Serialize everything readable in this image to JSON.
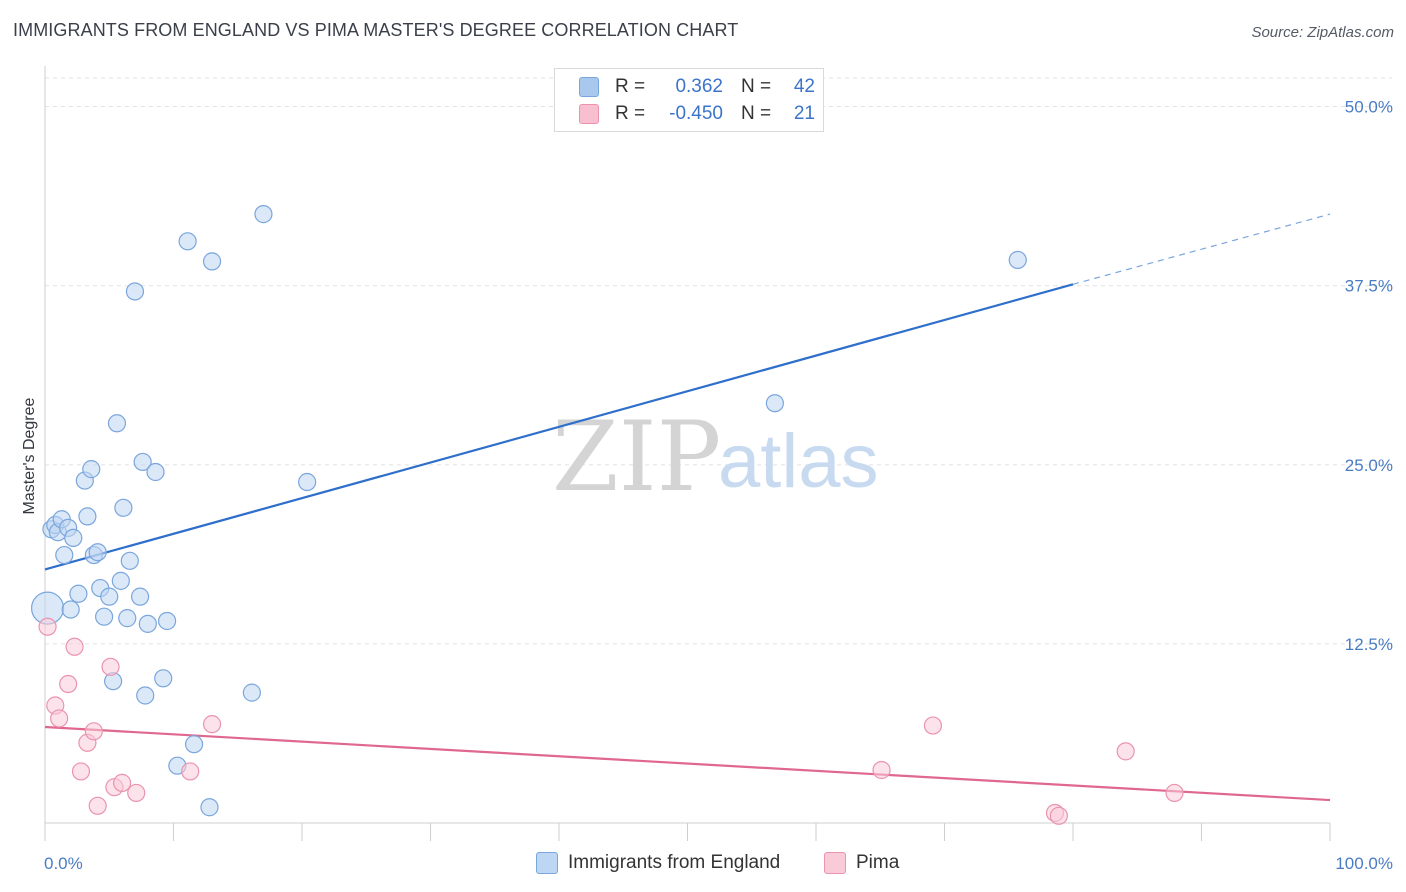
{
  "title": "IMMIGRANTS FROM ENGLAND VS PIMA MASTER'S DEGREE CORRELATION CHART",
  "source": "Source: ZipAtlas.com",
  "watermark": {
    "zip": "ZIP",
    "atlas": "atlas"
  },
  "legend_top": [
    {
      "r_label": "R =",
      "r_value": "0.362",
      "n_label": "N =",
      "n_value": "42",
      "color": "#a9c8ee",
      "border": "#7aa6dd"
    },
    {
      "r_label": "R =",
      "r_value": "-0.450",
      "n_label": "N =",
      "n_value": "21",
      "color": "#f7bfd0",
      "border": "#ea94ae"
    }
  ],
  "legend_bottom": [
    {
      "label": "Immigrants from England",
      "color": "#bdd6f3",
      "border": "#7aa6dd"
    },
    {
      "label": "Pima",
      "color": "#f9cad8",
      "border": "#ea94ae"
    }
  ],
  "chart_data": {
    "type": "scatter",
    "title": "IMMIGRANTS FROM ENGLAND VS PIMA MASTER'S DEGREE CORRELATION CHART",
    "xlabel": "",
    "ylabel": "Master's Degree",
    "xlim": [
      0,
      100
    ],
    "ylim": [
      0,
      52
    ],
    "x_tick_labels": [
      "0.0%",
      "100.0%"
    ],
    "y_ticks": [
      12.5,
      25.0,
      37.5,
      50.0
    ],
    "y_tick_labels": [
      "12.5%",
      "25.0%",
      "37.5%",
      "50.0%"
    ],
    "grid": true,
    "series": [
      {
        "name": "Immigrants from England",
        "color": "#7aa6dd",
        "fill": "#bdd6f3",
        "points": [
          [
            0.2,
            15.0
          ],
          [
            0.5,
            20.5
          ],
          [
            0.8,
            20.8
          ],
          [
            1.0,
            20.3
          ],
          [
            1.3,
            21.2
          ],
          [
            1.5,
            18.7
          ],
          [
            1.8,
            20.6
          ],
          [
            2.0,
            14.9
          ],
          [
            2.2,
            19.9
          ],
          [
            2.6,
            16.0
          ],
          [
            3.1,
            23.9
          ],
          [
            3.3,
            21.4
          ],
          [
            3.6,
            24.7
          ],
          [
            3.8,
            18.7
          ],
          [
            4.1,
            18.9
          ],
          [
            4.3,
            16.4
          ],
          [
            4.6,
            14.4
          ],
          [
            5.0,
            15.8
          ],
          [
            5.3,
            9.9
          ],
          [
            5.6,
            27.9
          ],
          [
            5.9,
            16.9
          ],
          [
            6.1,
            22.0
          ],
          [
            6.4,
            14.3
          ],
          [
            6.6,
            18.3
          ],
          [
            7.0,
            37.1
          ],
          [
            7.4,
            15.8
          ],
          [
            7.6,
            25.2
          ],
          [
            7.8,
            8.9
          ],
          [
            8.0,
            13.9
          ],
          [
            8.6,
            24.5
          ],
          [
            9.2,
            10.1
          ],
          [
            9.5,
            14.1
          ],
          [
            10.3,
            4.0
          ],
          [
            11.1,
            40.6
          ],
          [
            11.6,
            5.5
          ],
          [
            12.8,
            1.1
          ],
          [
            13.0,
            39.2
          ],
          [
            16.1,
            9.1
          ],
          [
            17.0,
            42.5
          ],
          [
            20.4,
            23.8
          ],
          [
            56.8,
            29.3
          ],
          [
            75.7,
            39.3
          ]
        ],
        "trend": {
          "x0": 0,
          "y0": 17.7,
          "x1": 80,
          "y1": 37.6,
          "dashed_to_x": 100,
          "dashed_to_y": 42.5
        }
      },
      {
        "name": "Pima",
        "color": "#ea94ae",
        "fill": "#f9cad8",
        "points": [
          [
            0.2,
            13.7
          ],
          [
            0.8,
            8.2
          ],
          [
            1.1,
            7.3
          ],
          [
            1.8,
            9.7
          ],
          [
            2.3,
            12.3
          ],
          [
            2.8,
            3.6
          ],
          [
            3.3,
            5.6
          ],
          [
            3.8,
            6.4
          ],
          [
            4.1,
            1.2
          ],
          [
            5.1,
            10.9
          ],
          [
            5.4,
            2.5
          ],
          [
            6.0,
            2.8
          ],
          [
            7.1,
            2.1
          ],
          [
            11.3,
            3.6
          ],
          [
            13.0,
            6.9
          ],
          [
            65.1,
            3.7
          ],
          [
            69.1,
            6.8
          ],
          [
            78.6,
            0.7
          ],
          [
            78.9,
            0.5
          ],
          [
            84.1,
            5.0
          ],
          [
            87.9,
            2.1
          ]
        ],
        "trend": {
          "x0": 0,
          "y0": 6.7,
          "x1": 100,
          "y1": 1.6
        }
      }
    ]
  }
}
